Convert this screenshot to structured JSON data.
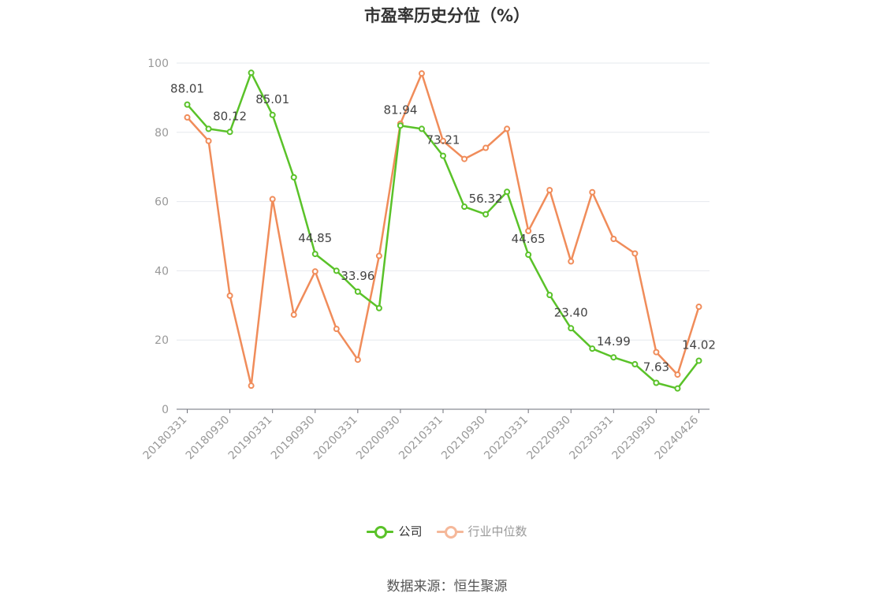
{
  "chart_data": {
    "type": "line",
    "title": "市盈率历史分位（%）",
    "categories": [
      "20180331",
      "20180630",
      "20180930",
      "20181231",
      "20190331",
      "20190630",
      "20190930",
      "20191231",
      "20200331",
      "20200630",
      "20200930",
      "20201231",
      "20210331",
      "20210630",
      "20210930",
      "20211231",
      "20220331",
      "20220630",
      "20220930",
      "20221231",
      "20230331",
      "20230630",
      "20230930",
      "20231231",
      "20240426"
    ],
    "x_tick_labels": [
      "20180331",
      "20180930",
      "20190331",
      "20190930",
      "20200331",
      "20200930",
      "20210331",
      "20210930",
      "20220331",
      "20220930",
      "20230331",
      "20230930",
      "20240426"
    ],
    "ylim": [
      0,
      100
    ],
    "y_ticks": [
      "0",
      "20",
      "40",
      "60",
      "80",
      "100"
    ],
    "grid": true,
    "legend_position": "bottom",
    "series": [
      {
        "name": "公司",
        "color": "#5ac229",
        "values": [
          88.01,
          81.0,
          80.12,
          97.2,
          85.01,
          67.0,
          44.85,
          40.0,
          33.96,
          29.2,
          81.94,
          81.0,
          73.21,
          58.5,
          56.32,
          62.8,
          44.65,
          33.0,
          23.4,
          17.5,
          14.99,
          13.0,
          7.63,
          6.0,
          14.02
        ],
        "data_labels": [
          "88.01",
          "",
          "80.12",
          "",
          "85.01",
          "",
          "44.85",
          "",
          "33.96",
          "",
          "81.94",
          "",
          "73.21",
          "",
          "56.32",
          "",
          "44.65",
          "",
          "23.40",
          "",
          "14.99",
          "",
          "7.63",
          "",
          "14.02"
        ]
      },
      {
        "name": "行业中位数",
        "color": "#f08c5a",
        "values": [
          84.3,
          77.5,
          32.8,
          6.8,
          60.7,
          27.3,
          39.8,
          23.2,
          14.3,
          44.3,
          82.5,
          97.0,
          77.5,
          72.3,
          75.5,
          81.0,
          51.5,
          63.3,
          42.7,
          62.7,
          49.2,
          45.0,
          16.5,
          10.0,
          29.6
        ]
      }
    ]
  },
  "legend": [
    {
      "label": "公司",
      "color": "#5ac229",
      "text_color": "#333333"
    },
    {
      "label": "行业中位数",
      "color": "#f5b89a",
      "text_color": "#999999"
    }
  ],
  "source_text": "数据来源：恒生聚源"
}
